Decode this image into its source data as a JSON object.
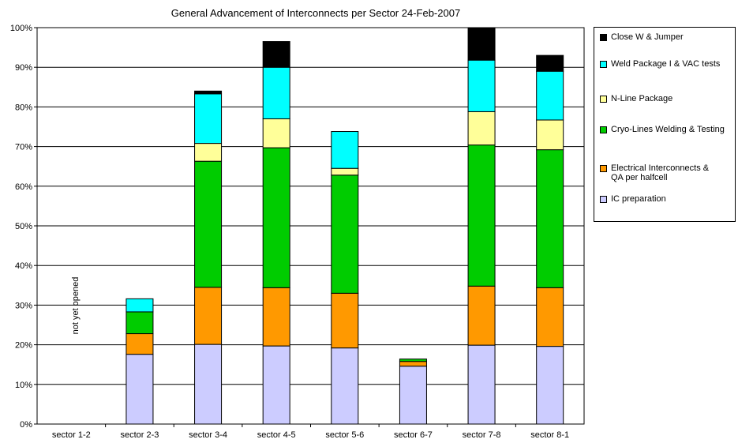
{
  "chart_data": {
    "type": "bar",
    "stacked": true,
    "title": "General Advancement of Interconnects per Sector 24-Feb-2007",
    "categories": [
      "sector 1-2",
      "sector 2-3",
      "sector 3-4",
      "sector 4-5",
      "sector 5-6",
      "sector 6-7",
      "sector 7-8",
      "sector 8-1"
    ],
    "yticks": [
      "0%",
      "10%",
      "20%",
      "30%",
      "40%",
      "50%",
      "60%",
      "70%",
      "80%",
      "90%",
      "100%"
    ],
    "ylim": [
      0,
      100
    ],
    "grid": true,
    "legend_position": "right",
    "annotation": "not yet opened",
    "series": [
      {
        "name": "IC preparation",
        "color": "#ccccff",
        "values": [
          0,
          17.6,
          20.1,
          19.7,
          19.2,
          14.6,
          19.9,
          19.6
        ]
      },
      {
        "name": "Electrical Interconnects & QA per halfcell",
        "color": "#ff9900",
        "values": [
          0,
          5.2,
          14.4,
          14.7,
          13.8,
          1.2,
          14.9,
          14.8
        ]
      },
      {
        "name": "Cryo-Lines Welding & Testing",
        "color": "#00cc00",
        "values": [
          0,
          5.5,
          31.8,
          35.3,
          29.8,
          0.6,
          35.6,
          34.8
        ]
      },
      {
        "name": "N-Line Package",
        "color": "#ffff99",
        "values": [
          0,
          0,
          4.5,
          7.3,
          1.7,
          0,
          8.4,
          7.5
        ]
      },
      {
        "name": "Weld Package I & VAC tests",
        "color": "#00ffff",
        "values": [
          0,
          3.3,
          12.5,
          13.0,
          9.3,
          0,
          13.0,
          12.3
        ]
      },
      {
        "name": "Close W & Jumper",
        "color": "#000000",
        "values": [
          0,
          0,
          0.7,
          6.5,
          0,
          0,
          8.2,
          4.0
        ]
      }
    ]
  }
}
